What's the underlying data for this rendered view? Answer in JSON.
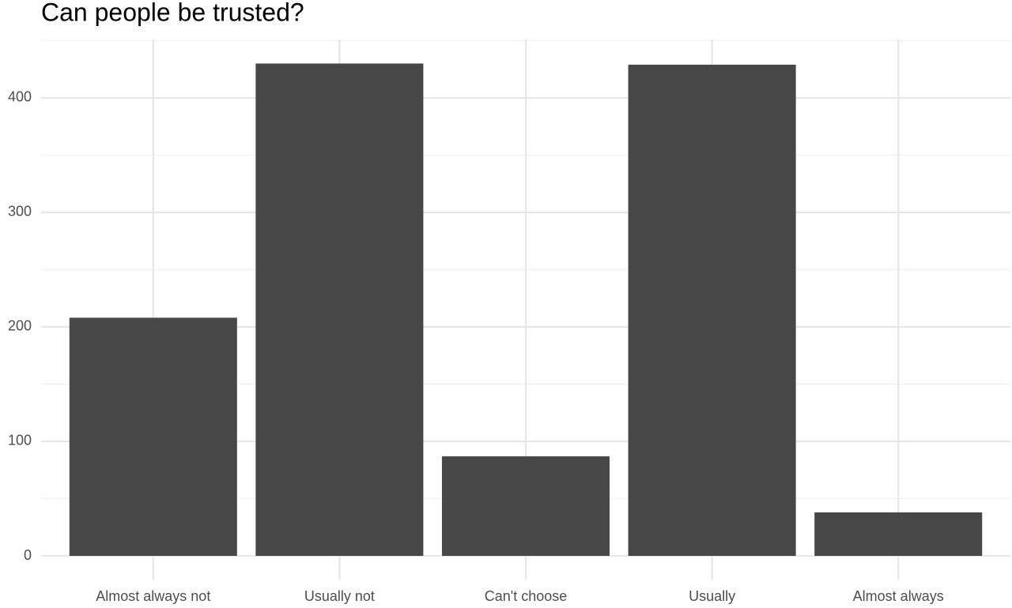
{
  "chart_data": {
    "type": "bar",
    "title": "Can people be trusted?",
    "categories": [
      "Almost always not",
      "Usually not",
      "Can't choose",
      "Usually",
      "Almost always"
    ],
    "values": [
      208,
      430,
      87,
      429,
      38
    ],
    "color": "#474747",
    "ylim": [
      0,
      451
    ],
    "yticks": [
      0,
      100,
      200,
      300,
      400
    ],
    "minor_yticks": [
      50,
      150,
      250,
      350,
      450
    ],
    "grid": true
  }
}
